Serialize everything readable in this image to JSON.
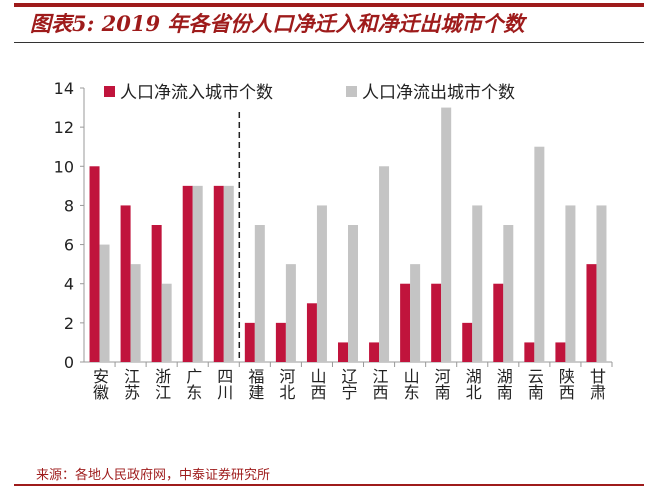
{
  "header": {
    "title": "图表5: 2019 年各省份人口净迁入和净迁出城市个数"
  },
  "footer": {
    "source": "来源：各地人民政府网，中泰证券研究所"
  },
  "chart_data": {
    "type": "bar",
    "title": "",
    "xlabel": "",
    "ylabel": "",
    "ylim": [
      0,
      14
    ],
    "yticks": [
      "0",
      "2",
      "4",
      "6",
      "8",
      "10",
      "12",
      "14"
    ],
    "categories": [
      "安徽",
      "江苏",
      "浙江",
      "广东",
      "四川",
      "福建",
      "河北",
      "山西",
      "辽宁",
      "江西",
      "山东",
      "河南",
      "湖北",
      "湖南",
      "云南",
      "陕西",
      "甘肃"
    ],
    "series": [
      {
        "name": "人口净流入城市个数",
        "color": "#c0143c",
        "values": [
          10,
          8,
          7,
          9,
          9,
          2,
          2,
          3,
          1,
          1,
          4,
          4,
          2,
          4,
          1,
          1,
          5
        ]
      },
      {
        "name": "人口净流出城市个数",
        "color": "#c4c4c4",
        "values": [
          6,
          5,
          4,
          9,
          9,
          7,
          5,
          8,
          7,
          10,
          5,
          13,
          8,
          7,
          11,
          8,
          8
        ]
      }
    ],
    "legend": "top",
    "grid": false,
    "divider_after": "四川"
  }
}
